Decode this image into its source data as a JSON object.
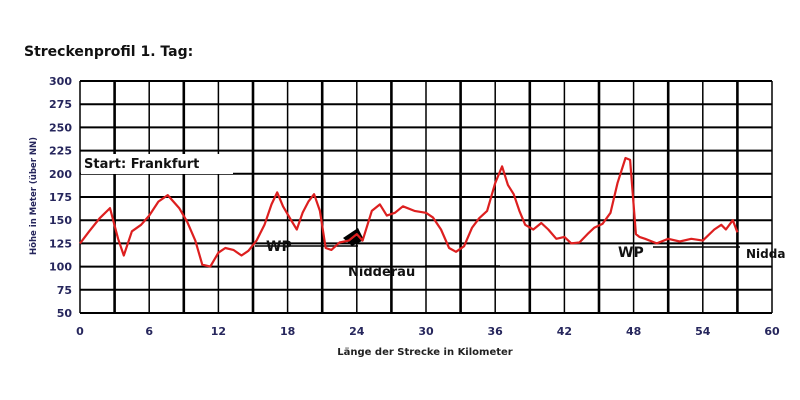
{
  "chart_data": {
    "type": "line",
    "title": "Streckenprofil 1. Tag:",
    "xlabel": "Länge der Strecke in Kilometer",
    "ylabel": "Höhe in Meter (über NN)",
    "xlim": [
      0,
      60
    ],
    "ylim": [
      50,
      300
    ],
    "x_ticks": [
      0,
      6,
      12,
      18,
      24,
      30,
      36,
      42,
      48,
      54,
      60
    ],
    "x_tick_labels": [
      "0",
      "6",
      "12",
      "18",
      "24",
      "30",
      "36",
      "42",
      "48",
      "54",
      "60"
    ],
    "y_ticks": [
      50,
      75,
      100,
      125,
      150,
      175,
      200,
      225,
      250,
      275,
      300
    ],
    "y_tick_labels": [
      "50",
      "75",
      "100",
      "125",
      "150",
      "175",
      "200",
      "225",
      "250",
      "275",
      "300"
    ],
    "grid": true,
    "line_color": "#dd1f1f",
    "series": [
      {
        "name": "",
        "x": [
          0,
          0.8,
          1.7,
          2.6,
          3.3,
          3.8,
          4.5,
          5.3,
          6.0,
          6.8,
          7.6,
          8.6,
          9.3,
          10.0,
          10.6,
          11.3,
          12.0,
          12.6,
          13.3,
          14.0,
          14.6,
          15.3,
          16.0,
          16.6,
          17.1,
          17.6,
          18.3,
          18.8,
          19.3,
          19.8,
          20.3,
          20.8,
          21.3,
          21.8,
          22.5,
          23.3,
          24.0,
          24.5,
          25.3,
          26.0,
          26.6,
          27.3,
          28.0,
          29.0,
          30.0,
          30.6,
          31.3,
          32.0,
          32.6,
          33.3,
          34.0,
          34.6,
          35.3,
          36.0,
          36.6,
          37.1,
          37.6,
          38.1,
          38.6,
          39.3,
          40.0,
          40.6,
          41.3,
          42.0,
          42.6,
          43.3,
          44.0,
          44.6,
          45.3,
          46.0,
          46.6,
          47.3,
          47.7,
          48.2,
          48.5,
          49.0,
          50.0,
          51.0,
          52.0,
          53.0,
          54.0,
          55.0,
          55.6,
          56.0,
          56.6,
          57.0
        ],
        "values": [
          125,
          138,
          152,
          163,
          130,
          112,
          138,
          145,
          155,
          170,
          177,
          163,
          148,
          128,
          102,
          100,
          115,
          120,
          118,
          112,
          117,
          128,
          145,
          167,
          180,
          165,
          150,
          140,
          158,
          170,
          178,
          160,
          120,
          118,
          126,
          128,
          135,
          128,
          160,
          167,
          155,
          158,
          165,
          160,
          158,
          153,
          140,
          120,
          116,
          122,
          142,
          152,
          160,
          190,
          208,
          188,
          178,
          160,
          145,
          140,
          147,
          140,
          130,
          132,
          125,
          126,
          135,
          142,
          146,
          158,
          190,
          217,
          215,
          135,
          132,
          130,
          125,
          130,
          127,
          130,
          128,
          140,
          145,
          140,
          150,
          137
        ]
      }
    ],
    "annotations": [
      "Start: Frankfurt",
      "WP",
      "Nidderau",
      "WP",
      "Nidda"
    ]
  }
}
